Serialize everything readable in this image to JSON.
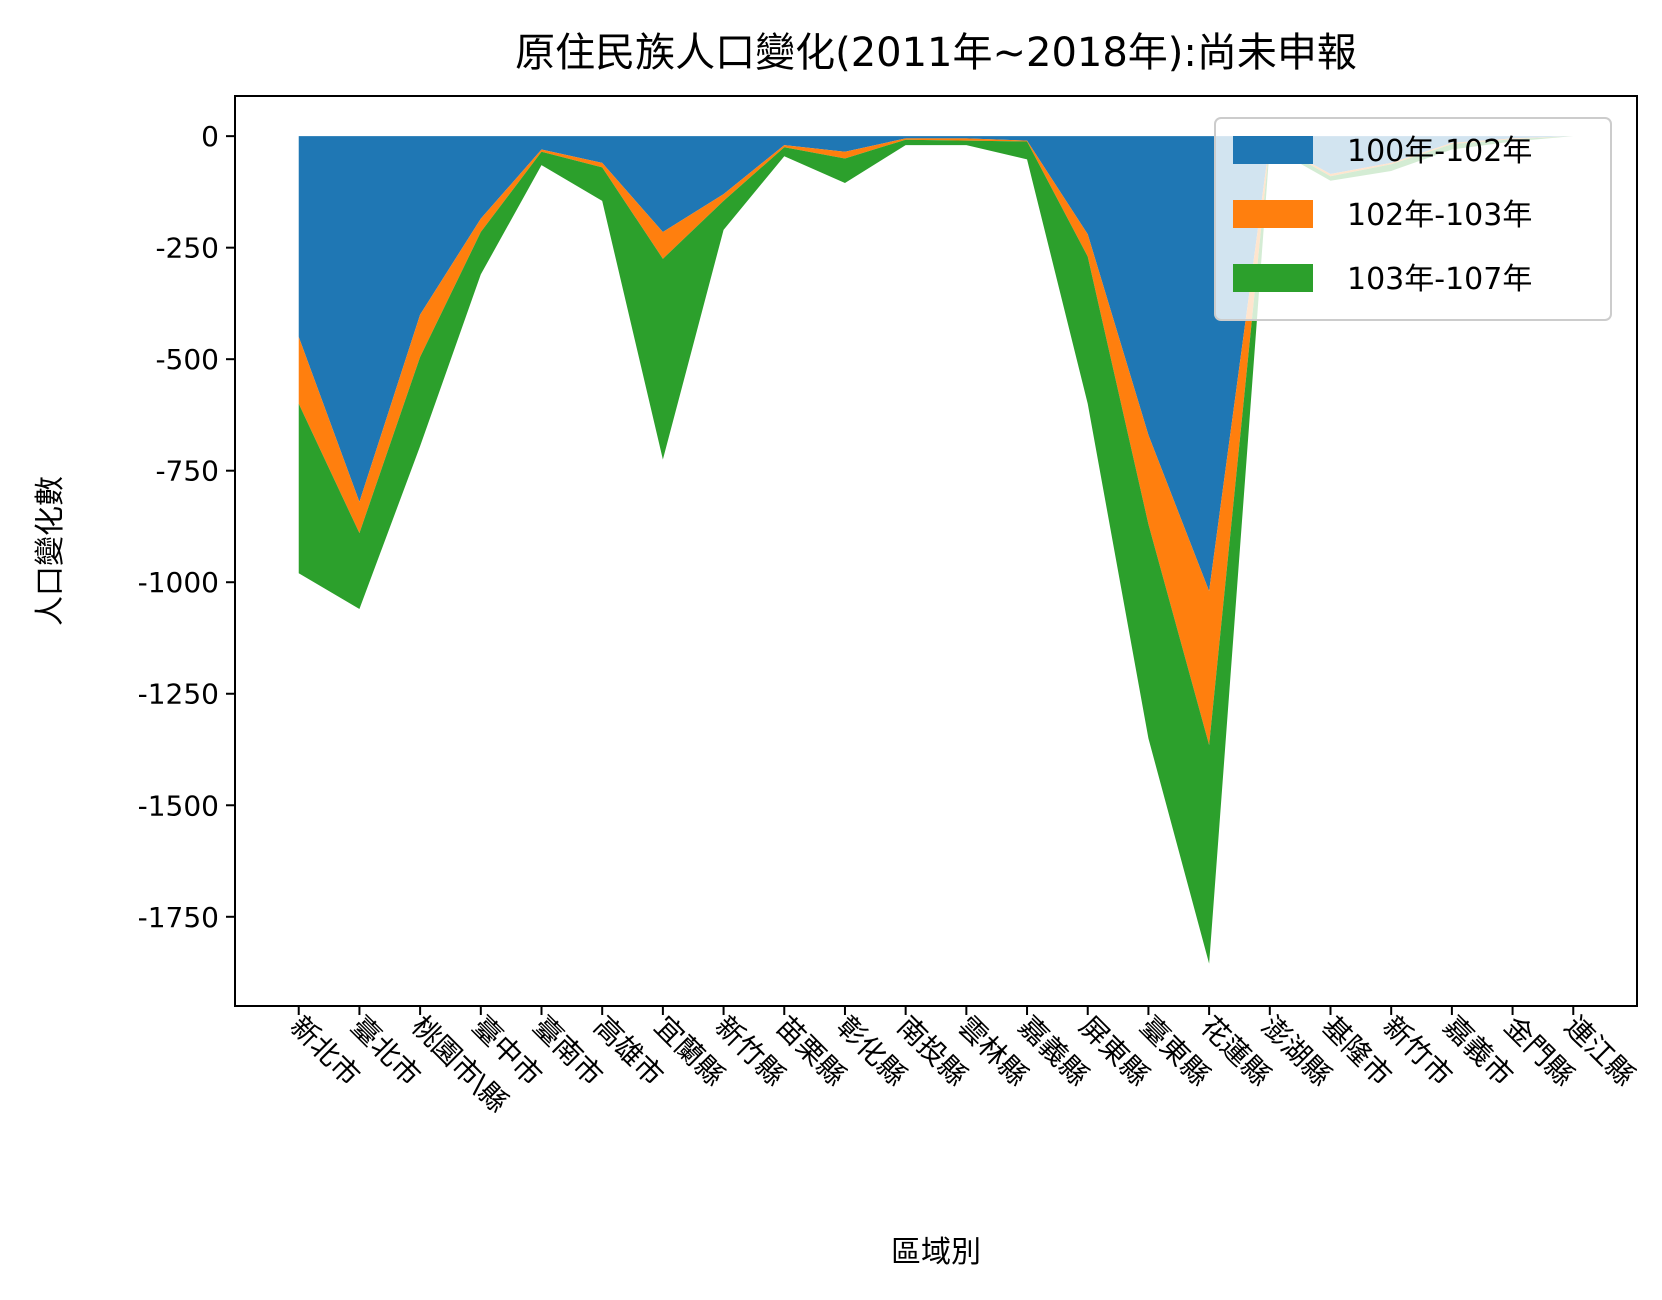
{
  "chart_data": {
    "type": "area",
    "stacked": true,
    "title": "原住民族人口變化(2011年~2018年):尚未申報",
    "xlabel": "區域別",
    "ylabel": "人口變化數",
    "categories": [
      "新北市",
      "臺北市",
      "桃園市\\縣",
      "臺中市",
      "臺南市",
      "高雄市",
      "宜蘭縣",
      "新竹縣",
      "苗栗縣",
      "彰化縣",
      "南投縣",
      "雲林縣",
      "嘉義縣",
      "屏東縣",
      "臺東縣",
      "花蓮縣",
      "澎湖縣",
      "基隆市",
      "新竹市",
      "嘉義市",
      "金門縣",
      "連江縣"
    ],
    "series": [
      {
        "name": "100年-102年",
        "color": "#1f77b4",
        "values": [
          -450,
          -820,
          -400,
          -185,
          -30,
          -60,
          -215,
          -130,
          -20,
          -35,
          -5,
          -5,
          -10,
          -220,
          -670,
          -1020,
          -10,
          -85,
          -60,
          -15,
          -5,
          0
        ]
      },
      {
        "name": "102年-103年",
        "color": "#ff7f0e",
        "values": [
          -150,
          -70,
          -95,
          -30,
          -5,
          -10,
          -60,
          -15,
          -5,
          -15,
          -3,
          -5,
          -2,
          -50,
          -200,
          -345,
          -3,
          -5,
          -3,
          -3,
          -2,
          0
        ]
      },
      {
        "name": "103年-107年",
        "color": "#2ca02c",
        "values": [
          -380,
          -170,
          -200,
          -95,
          -30,
          -75,
          -450,
          -65,
          -20,
          -55,
          -12,
          -10,
          -40,
          -330,
          -480,
          -490,
          -10,
          -10,
          -15,
          -12,
          -5,
          0
        ]
      }
    ],
    "yticks": [
      0,
      -250,
      -500,
      -750,
      -1000,
      -1250,
      -1500,
      -1750
    ],
    "ylim": [
      -1950,
      90
    ],
    "xlim": [
      -1.05,
      22.05
    ],
    "legend_position": "upper right"
  }
}
